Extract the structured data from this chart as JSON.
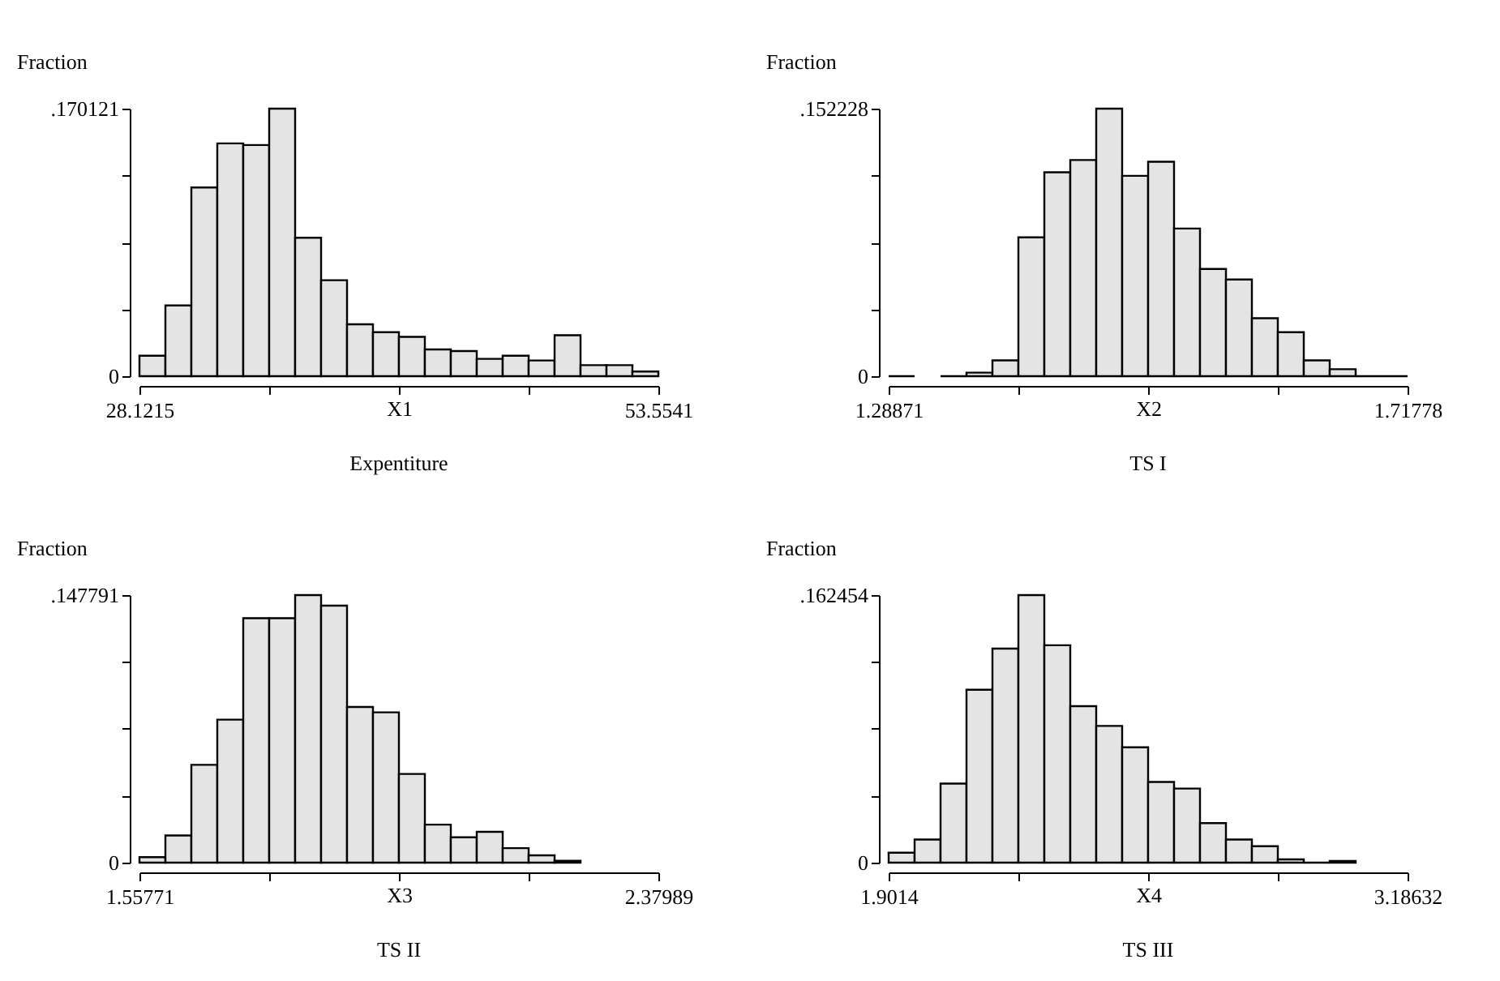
{
  "chart_data": [
    {
      "type": "histogram",
      "title": "Expentiture",
      "xlabel": "X1",
      "ylabel": "Fraction",
      "color": "#e4e4e4",
      "bins": [
        28.1215,
        29.393,
        30.665,
        31.936,
        33.208,
        34.48,
        35.751,
        37.023,
        38.295,
        39.566,
        40.838,
        42.109,
        43.381,
        44.653,
        45.924,
        47.196,
        48.467,
        49.739,
        51.011,
        52.282,
        53.5541
      ],
      "values": [
        0.013,
        0.045,
        0.12,
        0.148,
        0.147,
        0.170121,
        0.088,
        0.061,
        0.033,
        0.028,
        0.025,
        0.017,
        0.016,
        0.011,
        0.013,
        0.01,
        0.026,
        0.007,
        0.007,
        0.003
      ],
      "xlim": [
        28.1215,
        53.5541
      ],
      "xticks": [
        28.1215,
        {
          "value": 34.4797,
          "label": null
        },
        {
          "value": 40.8378,
          "label": null
        },
        {
          "value": 47.196,
          "label": null
        },
        53.5541
      ],
      "ylim": [
        0,
        0.170121
      ],
      "yticks": [
        {
          "value": 0,
          "label": "0"
        },
        {
          "value": 0.04253,
          "label": null
        },
        {
          "value": 0.08506,
          "label": null
        },
        {
          "value": 0.12759,
          "label": null
        },
        {
          "value": 0.170121,
          "label": ".170121"
        }
      ]
    },
    {
      "type": "histogram",
      "title": "TS I",
      "xlabel": "X2",
      "ylabel": "Fraction",
      "colors": [
        "#000000",
        null,
        "#000000",
        "#e4e4e4",
        "#e4e4e4",
        "#e4e4e4",
        "#e4e4e4",
        "#e4e4e4",
        "#e4e4e4",
        "#e4e4e4",
        "#e4e4e4",
        "#e4e4e4",
        "#e4e4e4",
        "#e4e4e4",
        "#e4e4e4",
        "#e4e4e4",
        "#e4e4e4",
        "#e4e4e4",
        "#000000",
        "#000000"
      ],
      "bins": [
        1.28871,
        1.31016,
        1.33162,
        1.35307,
        1.37452,
        1.39598,
        1.41743,
        1.43888,
        1.46034,
        1.48179,
        1.50325,
        1.5247,
        1.54615,
        1.56761,
        1.58906,
        1.61051,
        1.63197,
        1.65342,
        1.67487,
        1.69633,
        1.71778
      ],
      "values": [
        0,
        null,
        0,
        0.002,
        0.009,
        0.079,
        0.116,
        0.123,
        0.152228,
        0.114,
        0.122,
        0.084,
        0.061,
        0.055,
        0.033,
        0.025,
        0.009,
        0.004,
        0,
        0
      ],
      "xlim": [
        1.28871,
        1.71778
      ],
      "xticks": [
        1.28871,
        {
          "value": 1.39598,
          "label": null
        },
        {
          "value": 1.50325,
          "label": null
        },
        {
          "value": 1.61051,
          "label": null
        },
        1.71778
      ],
      "ylim": [
        0,
        0.152228
      ],
      "yticks": [
        {
          "value": 0,
          "label": "0"
        },
        {
          "value": 0.03806,
          "label": null
        },
        {
          "value": 0.07611,
          "label": null
        },
        {
          "value": 0.11417,
          "label": null
        },
        {
          "value": 0.152228,
          "label": ".152228"
        }
      ]
    },
    {
      "type": "histogram",
      "title": "TS II",
      "xlabel": "X3",
      "ylabel": "Fraction",
      "color": "#e4e4e4",
      "bins": [
        1.55771,
        1.59882,
        1.63993,
        1.68104,
        1.72215,
        1.76326,
        1.80437,
        1.84548,
        1.88659,
        1.9277,
        1.9688,
        2.00991,
        2.05102,
        2.09213,
        2.13324,
        2.17435,
        2.21546,
        2.25657
      ],
      "values": [
        0.003,
        0.015,
        0.054,
        0.079,
        0.135,
        0.135,
        0.147791,
        0.142,
        0.086,
        0.083,
        0.049,
        0.021,
        0.014,
        0.017,
        0.008,
        0.004,
        0.001
      ],
      "xlim": [
        1.55771,
        2.37989
      ],
      "xticks": [
        1.55771,
        {
          "value": 1.76326,
          "label": null
        },
        {
          "value": 1.9688,
          "label": null
        },
        {
          "value": 2.17435,
          "label": null
        },
        2.37989
      ],
      "ylim": [
        0,
        0.147791
      ],
      "yticks": [
        {
          "value": 0,
          "label": "0"
        },
        {
          "value": 0.03695,
          "label": null
        },
        {
          "value": 0.0739,
          "label": null
        },
        {
          "value": 0.11084,
          "label": null
        },
        {
          "value": 0.147791,
          "label": ".147791"
        }
      ]
    },
    {
      "type": "histogram",
      "title": "TS III",
      "xlabel": "X4",
      "ylabel": "Fraction",
      "colors": [
        "#e4e4e4",
        "#e4e4e4",
        "#e4e4e4",
        "#e4e4e4",
        "#e4e4e4",
        "#e4e4e4",
        "#e4e4e4",
        "#e4e4e4",
        "#e4e4e4",
        "#e4e4e4",
        "#e4e4e4",
        "#e4e4e4",
        "#e4e4e4",
        "#e4e4e4",
        "#e4e4e4",
        "#e4e4e4",
        "#000000",
        "#e4e4e4"
      ],
      "bins": [
        1.9014,
        1.96565,
        2.02989,
        2.09414,
        2.15838,
        2.22263,
        2.28688,
        2.35112,
        2.41537,
        2.47961,
        2.54386,
        2.60811,
        2.67235,
        2.7366,
        2.80084,
        2.86509,
        2.92934,
        2.99358,
        3.05783
      ],
      "values": [
        0.006,
        0.014,
        0.048,
        0.105,
        0.13,
        0.162454,
        0.132,
        0.095,
        0.083,
        0.07,
        0.049,
        0.045,
        0.024,
        0.014,
        0.01,
        0.002,
        0,
        0.001
      ],
      "xlim": [
        1.9014,
        3.18632
      ],
      "xticks": [
        1.9014,
        {
          "value": 2.22263,
          "label": null
        },
        {
          "value": 2.54386,
          "label": null
        },
        {
          "value": 2.86509,
          "label": null
        },
        3.18632
      ],
      "ylim": [
        0,
        0.162454
      ],
      "yticks": [
        {
          "value": 0,
          "label": "0"
        },
        {
          "value": 0.04061,
          "label": null
        },
        {
          "value": 0.08123,
          "label": null
        },
        {
          "value": 0.12184,
          "label": null
        },
        {
          "value": 0.162454,
          "label": ".162454"
        }
      ]
    }
  ]
}
